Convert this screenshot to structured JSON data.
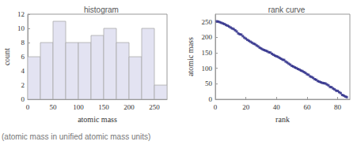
{
  "chart_data": [
    {
      "type": "histogram",
      "title": "histogram",
      "x_label": "atomic mass",
      "y_label": "count",
      "bins": [
        0,
        25,
        50,
        75,
        100,
        125,
        150,
        175,
        200,
        225,
        250,
        275
      ],
      "values": [
        6,
        8,
        11,
        8,
        8,
        9,
        10,
        8,
        6,
        10,
        2
      ],
      "color": "#e3e3f2",
      "xlim": [
        0,
        275
      ],
      "xticks": [
        0,
        50,
        100,
        150,
        200,
        250
      ],
      "ylim": [
        0,
        12
      ],
      "yticks": [
        0,
        2,
        4,
        6,
        8,
        10,
        12
      ],
      "grid": false
    },
    {
      "type": "scatter",
      "title": "rank curve",
      "x_label": "rank",
      "y_label": "atomic mass",
      "x": [
        1,
        2,
        3,
        4,
        5,
        6,
        7,
        8,
        9,
        10,
        11,
        12,
        13,
        14,
        15,
        16,
        17,
        18,
        19,
        20,
        21,
        22,
        23,
        24,
        25,
        26,
        27,
        28,
        29,
        30,
        31,
        32,
        33,
        34,
        35,
        36,
        37,
        38,
        39,
        40,
        41,
        42,
        43,
        44,
        45,
        46,
        47,
        48,
        49,
        50,
        51,
        52,
        53,
        54,
        55,
        56,
        57,
        58,
        59,
        60,
        61,
        62,
        63,
        64,
        65,
        66,
        67,
        68,
        69,
        70,
        71,
        72,
        73,
        74,
        75,
        76,
        77,
        78,
        79,
        80,
        81,
        82,
        83,
        84,
        85,
        86
      ],
      "values": [
        252,
        251,
        249,
        247,
        245,
        243,
        240,
        238,
        235,
        232,
        229,
        227,
        223,
        219,
        213,
        210,
        209,
        204,
        199,
        196,
        192,
        189,
        186,
        183,
        180,
        178,
        174,
        171,
        167,
        164,
        161,
        159,
        157,
        155,
        152,
        151,
        147,
        144,
        141,
        139,
        137,
        134,
        131,
        128,
        127,
        122,
        119,
        115,
        112,
        108,
        106,
        103,
        101,
        98,
        96,
        93,
        91,
        88,
        85,
        81,
        79,
        74,
        72,
        69,
        65,
        63,
        59,
        57,
        55,
        53,
        52,
        51,
        48,
        45,
        40,
        39,
        35,
        32,
        28,
        27,
        23,
        20,
        14,
        12,
        9,
        7
      ],
      "color": "#232383",
      "marker": "square",
      "xlim": [
        0,
        88
      ],
      "xticks": [
        0,
        20,
        40,
        60,
        80
      ],
      "ylim": [
        0,
        275
      ],
      "yticks": [
        0,
        50,
        100,
        150,
        200,
        250
      ],
      "grid": false
    }
  ],
  "caption": "(atomic mass in unified atomic mass units)"
}
